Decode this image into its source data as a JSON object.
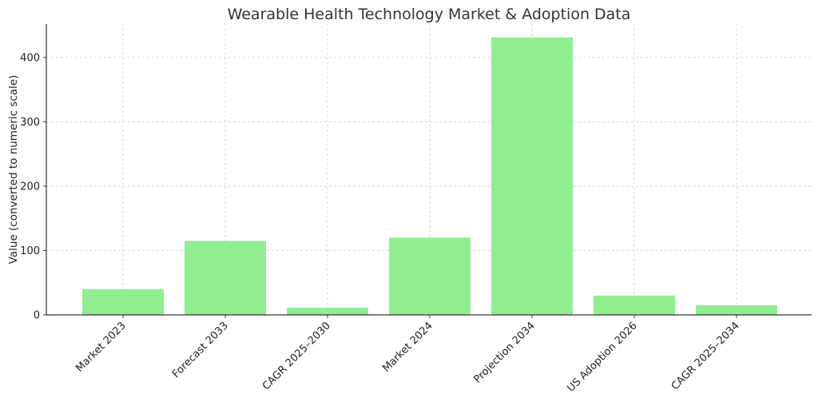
{
  "chart_data": {
    "type": "bar",
    "title": "Wearable Health Technology Market & Adoption Data",
    "xlabel": "",
    "ylabel": "Value (converted to numeric scale)",
    "categories": [
      "Market 2023",
      "Forecast 2033",
      "CAGR 2025–2030",
      "Market 2024",
      "Projection 2034",
      "US Adoption 2026",
      "CAGR 2025–2034"
    ],
    "values": [
      40,
      115,
      11,
      120,
      431,
      30,
      15
    ],
    "ylim": [
      0,
      452
    ],
    "yticks": [
      0,
      100,
      200,
      300,
      400
    ],
    "grid": true,
    "bar_color": "#90ee90"
  }
}
